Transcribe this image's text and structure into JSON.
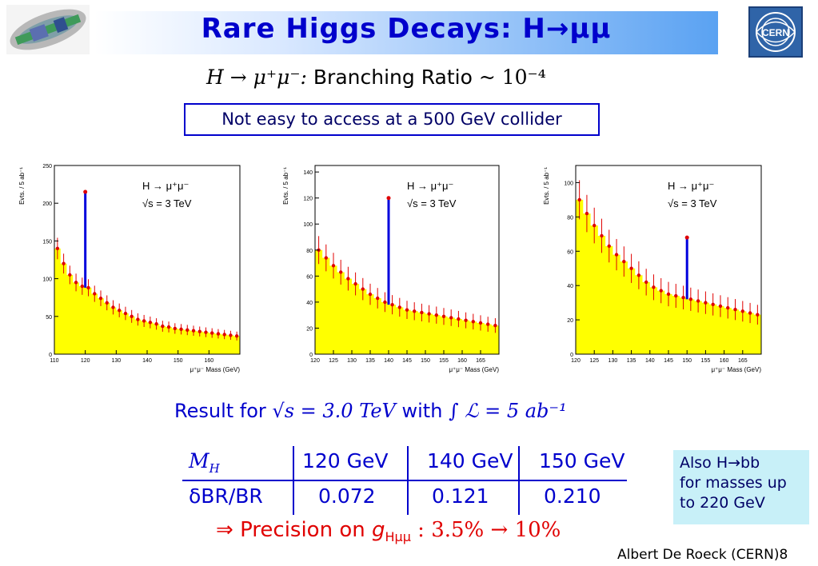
{
  "header": {
    "title_main": "Rare Higgs Decays: H",
    "title_arrow": "→",
    "title_tail": "μμ"
  },
  "formula": {
    "lhs": "H → μ⁺μ⁻:",
    "text": "Branching Ratio",
    "rhs": "~ 10⁻⁴"
  },
  "note": "Not easy to access at a 500 GeV collider",
  "colors": {
    "title": "#0000cc",
    "accent_red": "#e00000",
    "fill_yellow": "#ffff00",
    "signal_blue": "#0000dd",
    "box_bg": "#c8f0f8"
  },
  "chart_data": [
    {
      "type": "scatter",
      "title": "",
      "xlabel": "μ⁺μ⁻ Mass (GeV)",
      "ylabel": "Evts. / 5 ab⁻¹",
      "xlim": [
        110,
        170
      ],
      "ylim": [
        0,
        250
      ],
      "xticks": [
        "110",
        "120",
        "130",
        "140",
        "150",
        "160"
      ],
      "yticks": [
        "0",
        "50",
        "100",
        "150",
        "200",
        "250"
      ],
      "xtick_values": [
        110,
        120,
        130,
        140,
        150,
        160
      ],
      "ytick_values": [
        0,
        50,
        100,
        150,
        200,
        250
      ],
      "legend": [
        "H → μ⁺μ⁻",
        "√s = 3 TeV"
      ],
      "peak": {
        "mass": 120,
        "height": 215
      },
      "series": [
        {
          "x": [
            110,
            112,
            114,
            116,
            118,
            120,
            122,
            124,
            126,
            128,
            130,
            132,
            134,
            136,
            138,
            140,
            142,
            144,
            146,
            148,
            150,
            152,
            154,
            156,
            158,
            160,
            162,
            164,
            166,
            168
          ],
          "y": [
            140,
            120,
            105,
            95,
            90,
            88,
            80,
            74,
            68,
            62,
            58,
            54,
            50,
            46,
            44,
            42,
            40,
            37,
            36,
            34,
            33,
            32,
            31,
            30,
            29,
            28,
            27,
            26,
            25,
            24
          ]
        }
      ]
    },
    {
      "type": "scatter",
      "title": "",
      "xlabel": "μ⁺μ⁻ Mass (GeV)",
      "ylabel": "Evts. / 5 ab⁻¹",
      "xlim": [
        120,
        170
      ],
      "ylim": [
        0,
        145
      ],
      "xticks": [
        "120",
        "125",
        "130",
        "135",
        "140",
        "145",
        "150",
        "155",
        "160",
        "165"
      ],
      "yticks": [
        "0",
        "20",
        "40",
        "60",
        "80",
        "100",
        "120",
        "140"
      ],
      "xtick_values": [
        120,
        125,
        130,
        135,
        140,
        145,
        150,
        155,
        160,
        165
      ],
      "ytick_values": [
        0,
        20,
        40,
        60,
        80,
        100,
        120,
        140
      ],
      "legend": [
        "H → μ⁺μ⁻",
        "√s = 3 TeV"
      ],
      "peak": {
        "mass": 140,
        "height": 120
      },
      "series": [
        {
          "x": [
            120,
            122,
            124,
            126,
            128,
            130,
            132,
            134,
            136,
            138,
            140,
            142,
            144,
            146,
            148,
            150,
            152,
            154,
            156,
            158,
            160,
            162,
            164,
            166,
            168
          ],
          "y": [
            80,
            74,
            68,
            63,
            58,
            54,
            50,
            46,
            43,
            40,
            38,
            36,
            34,
            33,
            32,
            31,
            30,
            29,
            28,
            27,
            26,
            25,
            24,
            23,
            22
          ]
        }
      ]
    },
    {
      "type": "scatter",
      "title": "",
      "xlabel": "μ⁺μ⁻ Mass (GeV)",
      "ylabel": "Evts. / 5 ab⁻¹",
      "xlim": [
        120,
        170
      ],
      "ylim": [
        0,
        110
      ],
      "xticks": [
        "120",
        "125",
        "130",
        "135",
        "140",
        "145",
        "150",
        "155",
        "160",
        "165"
      ],
      "yticks": [
        "0",
        "20",
        "40",
        "60",
        "80",
        "100"
      ],
      "xtick_values": [
        120,
        125,
        130,
        135,
        140,
        145,
        150,
        155,
        160,
        165
      ],
      "ytick_values": [
        0,
        20,
        40,
        60,
        80,
        100
      ],
      "legend": [
        "H → μ⁺μ⁻",
        "√s = 3 TeV"
      ],
      "peak": {
        "mass": 150,
        "height": 68
      },
      "series": [
        {
          "x": [
            120,
            122,
            124,
            126,
            128,
            130,
            132,
            134,
            136,
            138,
            140,
            142,
            144,
            146,
            148,
            150,
            152,
            154,
            156,
            158,
            160,
            162,
            164,
            166,
            168
          ],
          "y": [
            90,
            82,
            75,
            69,
            63,
            58,
            54,
            50,
            46,
            42,
            39,
            37,
            35,
            34,
            33,
            32,
            31,
            30,
            29,
            28,
            27,
            26,
            25,
            24,
            23
          ]
        }
      ]
    }
  ],
  "result": {
    "prefix": "Result for ",
    "sqrt_s": "√s = 3.0 TeV",
    "with": " with ",
    "lumi": "∫ ℒ = 5 ab⁻¹"
  },
  "table": {
    "row_header_1": "M",
    "row_header_1_sub": "H",
    "row_header_2": "δBR/BR",
    "columns": [
      "120 GeV",
      "140 GeV",
      "150 GeV"
    ],
    "values": [
      "0.072",
      "0.121",
      "0.210"
    ]
  },
  "precision": {
    "arrow": "⇒",
    "text": "Precision on",
    "g": "g",
    "g_sub": "Hμμ",
    "range": ": 3.5% → 10%"
  },
  "also_note": {
    "line1": "Also H→bb",
    "line2": "for masses up",
    "line3": "to 220 GeV"
  },
  "footer": {
    "author": "Albert De Roeck (CERN)",
    "page": "8"
  }
}
